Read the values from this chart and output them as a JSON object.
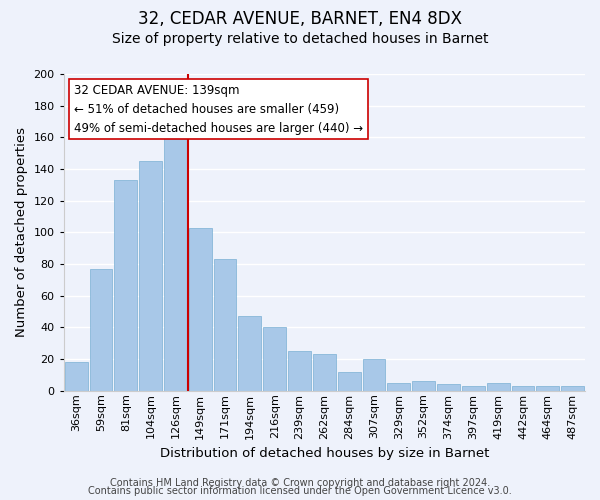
{
  "title": "32, CEDAR AVENUE, BARNET, EN4 8DX",
  "subtitle": "Size of property relative to detached houses in Barnet",
  "xlabel": "Distribution of detached houses by size in Barnet",
  "ylabel": "Number of detached properties",
  "categories": [
    "36sqm",
    "59sqm",
    "81sqm",
    "104sqm",
    "126sqm",
    "149sqm",
    "171sqm",
    "194sqm",
    "216sqm",
    "239sqm",
    "262sqm",
    "284sqm",
    "307sqm",
    "329sqm",
    "352sqm",
    "374sqm",
    "397sqm",
    "419sqm",
    "442sqm",
    "464sqm",
    "487sqm"
  ],
  "values": [
    18,
    77,
    133,
    145,
    165,
    103,
    83,
    47,
    40,
    25,
    23,
    12,
    20,
    5,
    6,
    4,
    3,
    5,
    3,
    3,
    3
  ],
  "bar_color": "#a8c8e8",
  "bar_edge_color": "#7ab0d4",
  "reference_line_x": 4.5,
  "reference_line_color": "#cc0000",
  "ylim": [
    0,
    200
  ],
  "yticks": [
    0,
    20,
    40,
    60,
    80,
    100,
    120,
    140,
    160,
    180,
    200
  ],
  "annotation_title": "32 CEDAR AVENUE: 139sqm",
  "annotation_line1": "← 51% of detached houses are smaller (459)",
  "annotation_line2": "49% of semi-detached houses are larger (440) →",
  "footer1": "Contains HM Land Registry data © Crown copyright and database right 2024.",
  "footer2": "Contains public sector information licensed under the Open Government Licence v3.0.",
  "bg_color": "#eef2fb",
  "grid_color": "#ffffff",
  "title_fontsize": 12,
  "subtitle_fontsize": 10,
  "axis_label_fontsize": 9.5,
  "tick_fontsize": 8,
  "annotation_fontsize": 8.5,
  "footer_fontsize": 7
}
